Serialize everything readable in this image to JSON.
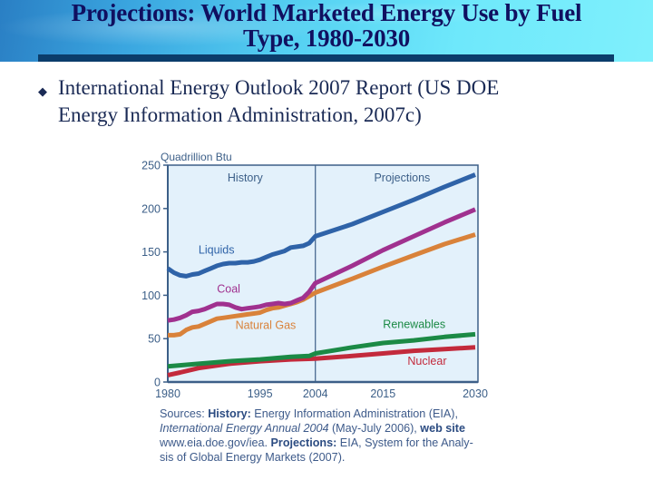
{
  "slide": {
    "title": "Projections: World Marketed Energy Use by Fuel Type, 1980-2030",
    "title_line1": "Projections: World Marketed Energy Use by Fuel",
    "title_line2": "Type, 1980-2030",
    "bullet_icon": "diamond-bullet-icon",
    "bullet_line1": "International Energy Outlook 2007 Report (US DOE",
    "bullet_line2": "Energy Information Administration, 2007c)"
  },
  "colors": {
    "title_text": "#101060",
    "title_bar": "#0b3d6b",
    "plot_bg": "#e3f1fb",
    "axis": "#3c5f88",
    "liquids": "#2f63a8",
    "coal": "#a0318f",
    "natural_gas": "#d9823a",
    "renewables": "#1b8a45",
    "nuclear": "#c32a3c"
  },
  "source": {
    "sources_label": "Sources:",
    "history_label": "History:",
    "history_text": "Energy Information Administration (EIA),",
    "publication": "International Energy Annual 2004",
    "pub_date": "(May-July 2006),",
    "web_label": "web site",
    "web_url": "www.eia.doe.gov/iea.",
    "projections_label": "Projections:",
    "projections_text": "EIA, System for the Analy-",
    "projections_text2": "sis of Global Energy Markets (2007)."
  },
  "chart_data": {
    "type": "line",
    "title": "",
    "ylabel": "Quadrillion Btu",
    "xlabel": "",
    "xlim": [
      1980,
      2030
    ],
    "ylim": [
      0,
      250
    ],
    "x_ticks": [
      1980,
      1995,
      2004,
      2015,
      2030
    ],
    "y_ticks": [
      0,
      50,
      100,
      150,
      200,
      250
    ],
    "grid": false,
    "divider_year": 2004,
    "region_labels": [
      {
        "text": "History",
        "region": "left"
      },
      {
        "text": "Projections",
        "region": "right"
      }
    ],
    "series": [
      {
        "name": "Liquids",
        "color_key": "liquids",
        "x": [
          1980,
          1981,
          1982,
          1983,
          1984,
          1985,
          1986,
          1987,
          1988,
          1989,
          1990,
          1991,
          1992,
          1993,
          1994,
          1995,
          1996,
          1997,
          1998,
          1999,
          2000,
          2001,
          2002,
          2003,
          2004,
          2010,
          2015,
          2020,
          2025,
          2030
        ],
        "y": [
          131,
          126,
          123,
          122,
          124,
          125,
          128,
          131,
          134,
          136,
          137,
          137,
          138,
          138,
          139,
          141,
          144,
          147,
          149,
          151,
          155,
          156,
          157,
          160,
          168,
          182,
          196,
          210,
          225,
          239
        ]
      },
      {
        "name": "Coal",
        "color_key": "coal",
        "x": [
          1980,
          1981,
          1982,
          1983,
          1984,
          1985,
          1986,
          1987,
          1988,
          1989,
          1990,
          1991,
          1992,
          1993,
          1994,
          1995,
          1996,
          1997,
          1998,
          1999,
          2000,
          2001,
          2002,
          2003,
          2004,
          2010,
          2015,
          2020,
          2025,
          2030
        ],
        "y": [
          71,
          72,
          74,
          77,
          81,
          82,
          84,
          87,
          90,
          90,
          89,
          86,
          84,
          85,
          86,
          87,
          89,
          90,
          91,
          90,
          91,
          94,
          97,
          104,
          114,
          134,
          152,
          168,
          184,
          199
        ]
      },
      {
        "name": "Natural Gas",
        "color_key": "natural_gas",
        "x": [
          1980,
          1981,
          1982,
          1983,
          1984,
          1985,
          1986,
          1987,
          1988,
          1989,
          1990,
          1991,
          1992,
          1993,
          1994,
          1995,
          1996,
          1997,
          1998,
          1999,
          2000,
          2001,
          2002,
          2003,
          2004,
          2010,
          2015,
          2020,
          2025,
          2030
        ],
        "y": [
          54,
          54,
          55,
          60,
          63,
          64,
          67,
          70,
          73,
          74,
          75,
          76,
          77,
          78,
          79,
          80,
          83,
          85,
          86,
          88,
          90,
          92,
          95,
          99,
          103,
          119,
          133,
          146,
          159,
          170
        ]
      },
      {
        "name": "Renewables",
        "color_key": "renewables",
        "x": [
          1980,
          1985,
          1990,
          1995,
          2000,
          2003,
          2004,
          2010,
          2015,
          2020,
          2025,
          2030
        ],
        "y": [
          18,
          21,
          24,
          26,
          29,
          30,
          33,
          40,
          45,
          48,
          52,
          55
        ]
      },
      {
        "name": "Nuclear",
        "color_key": "nuclear",
        "x": [
          1980,
          1982,
          1985,
          1988,
          1990,
          1995,
          2000,
          2004,
          2010,
          2015,
          2020,
          2025,
          2030
        ],
        "y": [
          8,
          11,
          16,
          19,
          21,
          24,
          26,
          27,
          30,
          33,
          36,
          38,
          40
        ]
      }
    ],
    "annotations": [
      {
        "text": "Liquids",
        "series": "Liquids",
        "at": [
          1985,
          148
        ]
      },
      {
        "text": "Coal",
        "series": "Coal",
        "at": [
          1988,
          103
        ]
      },
      {
        "text": "Natural Gas",
        "series": "Natural Gas",
        "at": [
          1991,
          61
        ]
      },
      {
        "text": "Renewables",
        "series": "Renewables",
        "at": [
          2015,
          62
        ]
      },
      {
        "text": "Nuclear",
        "series": "Nuclear",
        "at": [
          2019,
          20
        ]
      }
    ]
  }
}
